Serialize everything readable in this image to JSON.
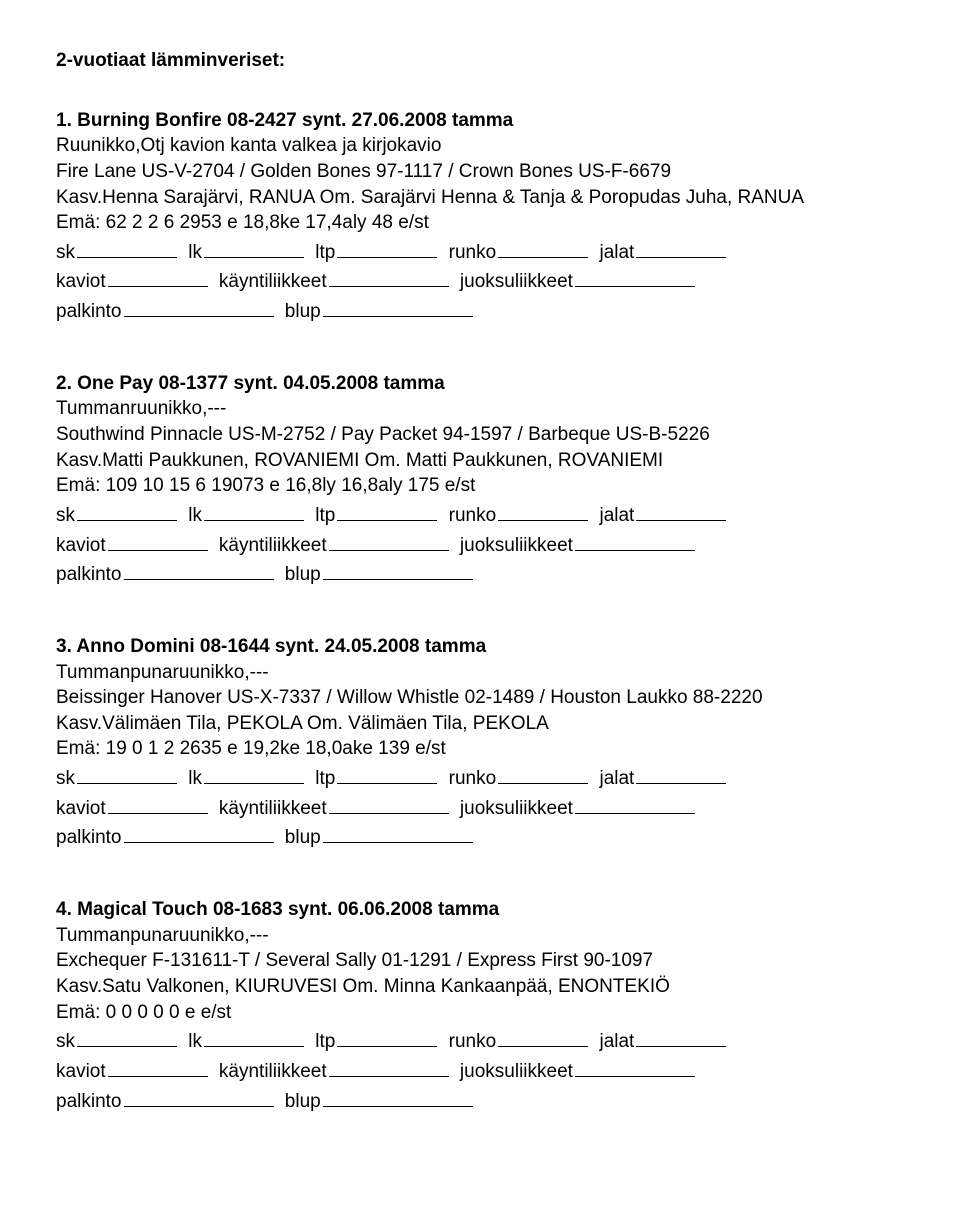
{
  "pageTitle": "2-vuotiaat lämminveriset:",
  "form": {
    "sk": "sk",
    "lk": "lk",
    "ltp": "ltp",
    "runko": "runko",
    "jalat": "jalat",
    "kaviot": "kaviot",
    "kayntiliikkeet": "käyntiliikkeet",
    "juoksuliikkeet": "juoksuliikkeet",
    "palkinto": "palkinto",
    "blup": "blup"
  },
  "entries": [
    {
      "title": "1. Burning Bonfire 08-2427 synt. 27.06.2008 tamma",
      "lines": [
        "Ruunikko,Otj kavion kanta valkea ja kirjokavio",
        "Fire Lane US-V-2704 / Golden Bones 97-1117 / Crown Bones US-F-6679",
        "Kasv.Henna Sarajärvi, RANUA Om. Sarajärvi Henna & Tanja & Poropudas Juha, RANUA",
        "Emä: 62 2 2 6 2953 e 18,8ke 17,4aly 48 e/st"
      ]
    },
    {
      "title": "2. One Pay 08-1377 synt. 04.05.2008 tamma",
      "lines": [
        "Tummanruunikko,---",
        "Southwind Pinnacle US-M-2752 / Pay Packet 94-1597 / Barbeque US-B-5226",
        "Kasv.Matti Paukkunen, ROVANIEMI Om. Matti Paukkunen, ROVANIEMI",
        "Emä: 109 10 15 6 19073 e 16,8ly 16,8aly 175 e/st"
      ]
    },
    {
      "title": "3. Anno Domini 08-1644 synt. 24.05.2008 tamma",
      "lines": [
        "Tummanpunaruunikko,---",
        "Beissinger Hanover US-X-7337 / Willow Whistle 02-1489 / Houston Laukko 88-2220",
        "Kasv.Välimäen Tila, PEKOLA Om. Välimäen Tila, PEKOLA",
        "Emä: 19 0 1 2 2635 e 19,2ke 18,0ake 139 e/st"
      ]
    },
    {
      "title": "4. Magical Touch 08-1683 synt. 06.06.2008 tamma",
      "lines": [
        "Tummanpunaruunikko,---",
        "Exchequer F-131611-T / Several Sally 01-1291 / Express First 90-1097",
        "Kasv.Satu Valkonen, KIURUVESI Om. Minna Kankaanpää, ENONTEKIÖ",
        "Emä: 0 0 0 0 0 e e/st"
      ]
    }
  ]
}
